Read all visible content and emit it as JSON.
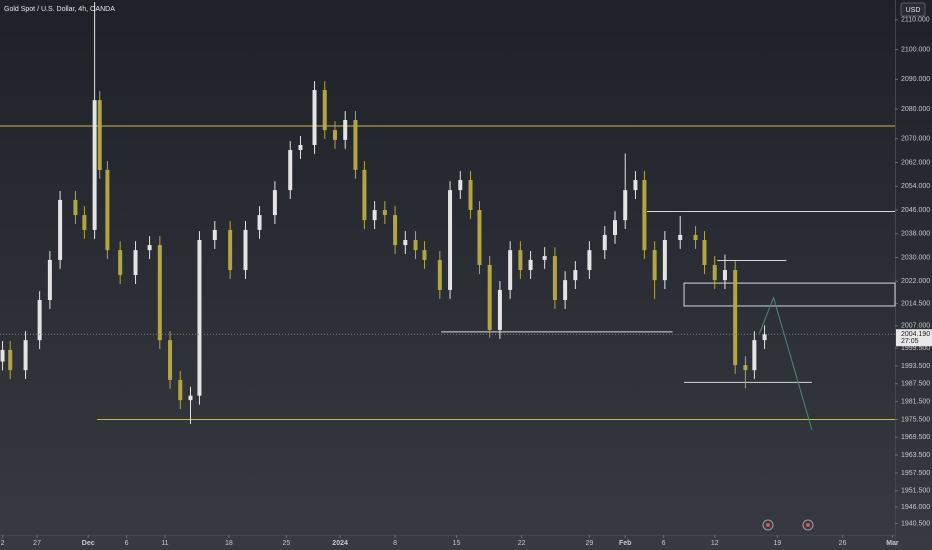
{
  "chart_data": {
    "type": "candlestick",
    "title": "Gold Spot / U.S. Dollar, 4h, OANDA",
    "currency": "USD",
    "xlim": [
      0,
      70
    ],
    "ylim": [
      1936.6,
      2116.7
    ],
    "up_color": "#e4e4e4",
    "down_color": "#b3a640",
    "x": [
      0.2,
      0.8,
      2.0,
      3.1,
      3.9,
      4.7,
      5.9,
      6.6,
      7.4,
      7.8,
      8.4,
      9.4,
      10.6,
      11.7,
      12.5,
      13.3,
      14.1,
      14.9,
      15.6,
      16.8,
      18.0,
      19.2,
      20.3,
      21.5,
      22.7,
      23.5,
      24.6,
      25.4,
      26.2,
      27.0,
      27.8,
      28.5,
      29.3,
      30.1,
      30.9,
      31.7,
      32.5,
      33.2,
      34.4,
      35.2,
      36.0,
      36.8,
      37.5,
      38.3,
      39.1,
      39.9,
      40.7,
      41.5,
      42.6,
      43.4,
      44.2,
      45.0,
      46.1,
      47.3,
      48.1,
      48.9,
      49.7,
      50.4,
      51.2,
      52.0,
      53.2,
      54.4,
      55.1,
      55.9,
      56.7,
      57.5,
      58.3,
      59.0,
      59.8
    ],
    "open": [
      1995,
      1998.9,
      1992.1,
      2002.2,
      2015.7,
      2029.2,
      2049.4,
      2044.3,
      2039.3,
      2083.0,
      2059.5,
      2032.5,
      2024.1,
      2032.5,
      2034.2,
      2002.2,
      1988.8,
      1982.0,
      1983.5,
      2035.9,
      2039.3,
      2025.8,
      2039.3,
      2044.3,
      2052.7,
      2066.2,
      2067.9,
      2086.4,
      2072.9,
      2069.6,
      2076.3,
      2059.5,
      2042.6,
      2046.0,
      2044.3,
      2034.2,
      2035.9,
      2032.5,
      2029.2,
      2019.1,
      2052.7,
      2056.1,
      2046.0,
      2027.5,
      2005.6,
      2019.1,
      2032.5,
      2025.8,
      2029.2,
      2030.5,
      2015.7,
      2022.4,
      2025.8,
      2032.5,
      2037.6,
      2042.6,
      2052.7,
      2056.1,
      2032.5,
      2022.4,
      2035.9,
      2037.6,
      2035.9,
      2027.5,
      2022.4,
      2025.8,
      1993.8,
      1992.1,
      2002.2
    ],
    "high": [
      2001.9,
      2001.9,
      2005.2,
      2018.7,
      2032.2,
      2052.4,
      2052.4,
      2047.3,
      2116,
      2086.0,
      2062.5,
      2035.5,
      2035.5,
      2037.2,
      2037.2,
      2005.2,
      1991.8,
      1986.5,
      2038.9,
      2042.3,
      2042.3,
      2042.3,
      2047.3,
      2055.7,
      2069.2,
      2070.9,
      2089.4,
      2089.4,
      2075.9,
      2079.3,
      2079.3,
      2062.5,
      2049.0,
      2049.0,
      2047.3,
      2038.9,
      2038.9,
      2035.5,
      2032.2,
      2055.7,
      2059.1,
      2059.1,
      2049.0,
      2030.5,
      2022.1,
      2035.5,
      2035.5,
      2032.2,
      2033.5,
      2033.5,
      2025.4,
      2028.8,
      2035.5,
      2040.6,
      2045.6,
      2065,
      2059.1,
      2059.1,
      2035.5,
      2038.9,
      2044,
      2040.6,
      2038.9,
      2030.5,
      2031,
      2028.8,
      1996.8,
      2005.2,
      2007.2
    ],
    "low": [
      1992,
      1989.1,
      1989.1,
      1999.2,
      2012.7,
      2026.2,
      2041.3,
      2036.3,
      2036.3,
      2056.5,
      2029.5,
      2021.1,
      2021.1,
      2029.5,
      1999.2,
      1985.8,
      1979.0,
      1974,
      1980.5,
      2032.9,
      2022.8,
      2022.8,
      2036.3,
      2041.3,
      2049.7,
      2063.2,
      2064.9,
      2069.9,
      2066.6,
      2066.6,
      2056.5,
      2039.6,
      2039.6,
      2041.3,
      2031.2,
      2031.2,
      2029.5,
      2026.2,
      2016.1,
      2016.1,
      2049.7,
      2043.0,
      2024.5,
      2003,
      2002.6,
      2016.1,
      2022.8,
      2022.8,
      2026.2,
      2012.7,
      2012.7,
      2019.4,
      2022.8,
      2029.5,
      2034.6,
      2039.6,
      2049.7,
      2029.5,
      2016,
      2019.4,
      2032.9,
      2032.9,
      2024.5,
      2019.4,
      2019.4,
      1990.8,
      1986,
      1989.1,
      1999.2
    ],
    "close": [
      1998.9,
      1992.1,
      2002.2,
      2015.7,
      2029.2,
      2049.4,
      2044.3,
      2039.3,
      2083.0,
      2059.5,
      2032.5,
      2024.1,
      2032.5,
      2034.2,
      2002.2,
      1988.8,
      1982.0,
      1983.5,
      2035.9,
      2039.3,
      2025.8,
      2039.3,
      2044.3,
      2052.7,
      2066.2,
      2067.9,
      2086.4,
      2072.9,
      2069.6,
      2076.3,
      2059.5,
      2042.6,
      2046.0,
      2044.3,
      2034.2,
      2035.9,
      2032.5,
      2029.2,
      2019.1,
      2052.7,
      2056.1,
      2046.0,
      2027.5,
      2005.6,
      2019.1,
      2032.5,
      2025.8,
      2029.2,
      2030.5,
      2015.7,
      2022.4,
      2025.8,
      2032.5,
      2037.6,
      2042.6,
      2052.7,
      2056.1,
      2032.5,
      2022.4,
      2035.9,
      2037.6,
      2035.9,
      2027.5,
      2022.4,
      2025.8,
      1993.8,
      1992.1,
      2002.2,
      2004.2
    ],
    "levels": [
      {
        "value": 2074.3,
        "x0": 0,
        "x1": 70,
        "color": "#c9b84a"
      },
      {
        "value": 1975.5,
        "x0": 7.6,
        "x1": 70,
        "color": "#c9b84a"
      },
      {
        "value": 2045.5,
        "x0": 50.6,
        "x1": 70,
        "color": "#d8d8d8"
      },
      {
        "value": 2005,
        "x0": 34.5,
        "x1": 52.6,
        "color": "#d8d8d8"
      },
      {
        "value": 1988,
        "x0": 53.5,
        "x1": 63.5,
        "color": "#d8d8d8"
      },
      {
        "value": 2029,
        "x0": 56.1,
        "x1": 61.5,
        "color": "#d8d8d8"
      }
    ],
    "zone": {
      "x0": 53.5,
      "x1": 70,
      "top": 2021.4,
      "bottom": 2013.7,
      "color": "#d8d8d8"
    },
    "projection": {
      "x": [
        59.4,
        60.5,
        63.5
      ],
      "y": [
        2004.5,
        2016.5,
        1972
      ],
      "color": "#4c8a6e"
    },
    "last_price": {
      "value": 2004.19,
      "label": "2004.190"
    },
    "countdown": "27:05",
    "yticks": [
      {
        "value": 2110,
        "label": "2110.000"
      },
      {
        "value": 2100,
        "label": "2100.000"
      },
      {
        "value": 2090,
        "label": "2090.000"
      },
      {
        "value": 2080,
        "label": "2080.000"
      },
      {
        "value": 2070,
        "label": "2070.000"
      },
      {
        "value": 2062,
        "label": "2062.000"
      },
      {
        "value": 2054,
        "label": "2054.000"
      },
      {
        "value": 2046,
        "label": "2046.000"
      },
      {
        "value": 2038,
        "label": "2038.000"
      },
      {
        "value": 2030,
        "label": "2030.000"
      },
      {
        "value": 2022,
        "label": "2022.000"
      },
      {
        "value": 2014.5,
        "label": "2014.500"
      },
      {
        "value": 2007,
        "label": "2007.000"
      },
      {
        "value": 1999.5,
        "label": "1999.500"
      },
      {
        "value": 1993.5,
        "label": "1993.500"
      },
      {
        "value": 1987.5,
        "label": "1987.500"
      },
      {
        "value": 1981.5,
        "label": "1981.500"
      },
      {
        "value": 1975.5,
        "label": "1975.500"
      },
      {
        "value": 1969.5,
        "label": "1969.500"
      },
      {
        "value": 1963.5,
        "label": "1963.500"
      },
      {
        "value": 1957.5,
        "label": "1957.500"
      },
      {
        "value": 1951.5,
        "label": "1951.500"
      },
      {
        "value": 1946,
        "label": "1946.000"
      },
      {
        "value": 1940.5,
        "label": "1940.500"
      }
    ],
    "xticks": [
      {
        "value": 0.2,
        "label": "2"
      },
      {
        "value": 2.9,
        "label": "27"
      },
      {
        "value": 6.9,
        "label": "Dec"
      },
      {
        "value": 9.9,
        "label": "6"
      },
      {
        "value": 12.9,
        "label": "11"
      },
      {
        "value": 17.9,
        "label": "18"
      },
      {
        "value": 22.4,
        "label": "25"
      },
      {
        "value": 26.6,
        "label": "2024"
      },
      {
        "value": 30.9,
        "label": "8"
      },
      {
        "value": 35.7,
        "label": "15"
      },
      {
        "value": 40.8,
        "label": "22"
      },
      {
        "value": 46.1,
        "label": "29"
      },
      {
        "value": 48.9,
        "label": "Feb"
      },
      {
        "value": 51.9,
        "label": "6"
      },
      {
        "value": 55.9,
        "label": "12"
      },
      {
        "value": 60.8,
        "label": "19"
      },
      {
        "value": 65.9,
        "label": "26"
      },
      {
        "value": 69.8,
        "label": "Mar"
      }
    ]
  }
}
